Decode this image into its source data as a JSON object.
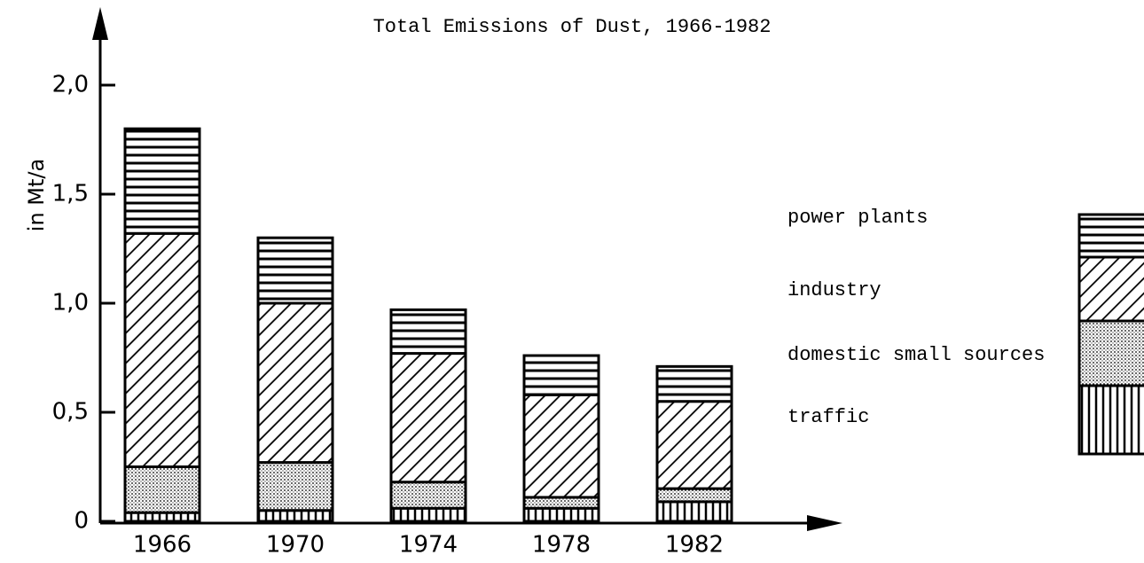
{
  "chart_data": {
    "type": "stacked_bar",
    "title": "Total Emissions of Dust, 1966-1982",
    "y_label": "in Mt/a",
    "categories": [
      "1966",
      "1970",
      "1974",
      "1978",
      "1982"
    ],
    "series": [
      {
        "name": "traffic",
        "color": "#000000",
        "hatch": "vertical",
        "values": [
          0.04,
          0.05,
          0.06,
          0.06,
          0.09
        ]
      },
      {
        "name": "domestic small sources",
        "color": "#000000",
        "hatch": "dots",
        "values": [
          0.21,
          0.22,
          0.12,
          0.05,
          0.06
        ]
      },
      {
        "name": "industry",
        "color": "#000000",
        "hatch": "diagonal",
        "values": [
          1.07,
          0.73,
          0.59,
          0.47,
          0.4
        ]
      },
      {
        "name": "power plants",
        "color": "#000000",
        "hatch": "horizontal",
        "values": [
          0.48,
          0.3,
          0.2,
          0.18,
          0.16
        ]
      }
    ],
    "ylim": [
      0,
      2.0
    ],
    "yticks": [
      0,
      {
        "value": 0.5,
        "label": "0,5"
      },
      {
        "value": 1.0,
        "label": "1,0"
      },
      {
        "value": 1.5,
        "label": "1,5"
      },
      {
        "value": 2.0,
        "label": "2,0"
      }
    ]
  }
}
